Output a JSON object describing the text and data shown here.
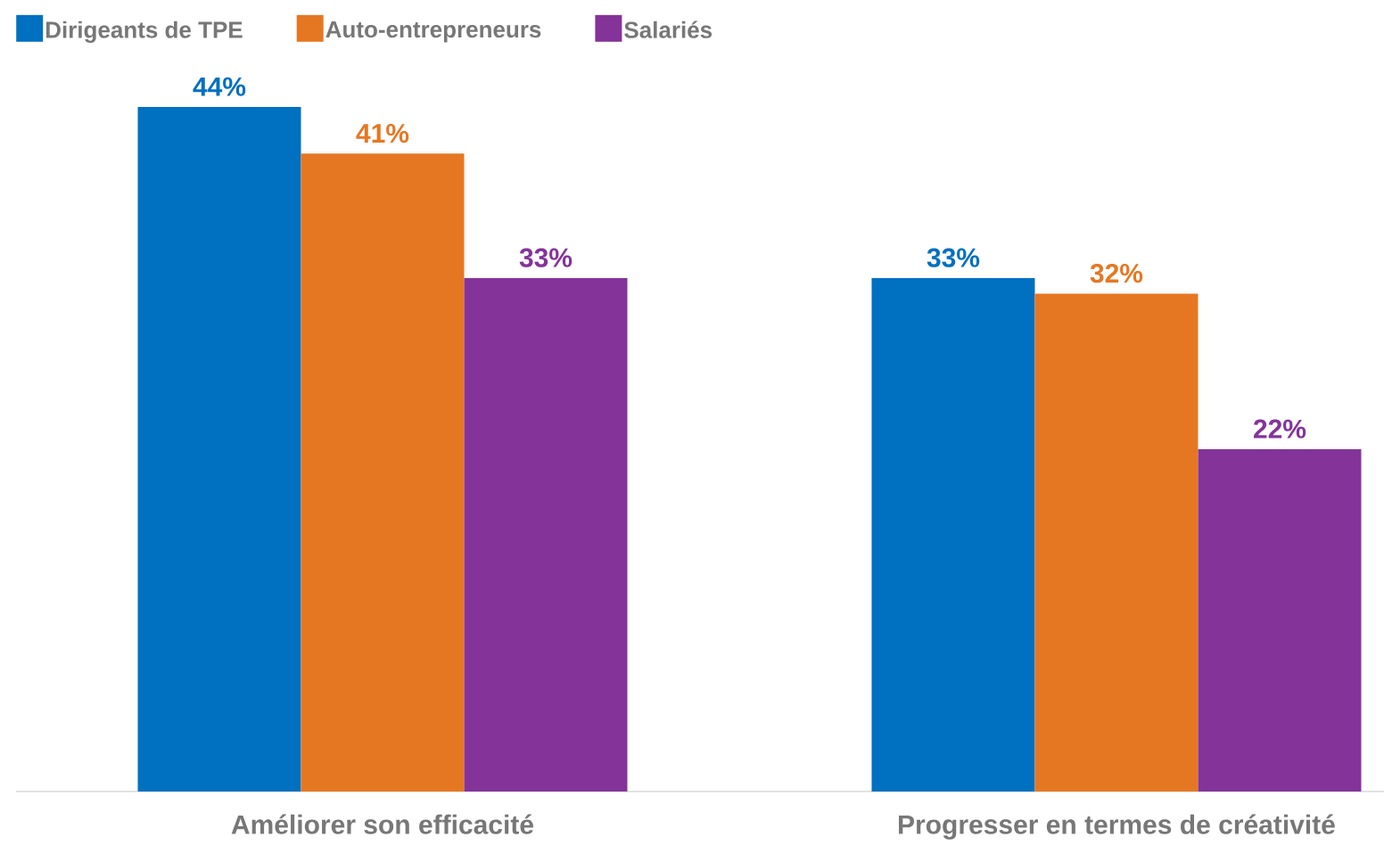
{
  "chart_data": {
    "type": "bar",
    "categories": [
      "Améliorer son efficacité",
      "Progresser en termes de créativité"
    ],
    "series": [
      {
        "name": "Dirigeants de TPE",
        "color": "#0070c0",
        "values": [
          44,
          33
        ],
        "value_labels": [
          "44%",
          "33%"
        ]
      },
      {
        "name": "Auto-entrepreneurs",
        "color": "#e67722",
        "values": [
          41,
          32
        ],
        "value_labels": [
          "41%",
          "32%"
        ]
      },
      {
        "name": "Salariés",
        "color": "#843399",
        "values": [
          33,
          22
        ],
        "value_labels": [
          "33%",
          "22%"
        ]
      }
    ],
    "legend": "top left"
  }
}
